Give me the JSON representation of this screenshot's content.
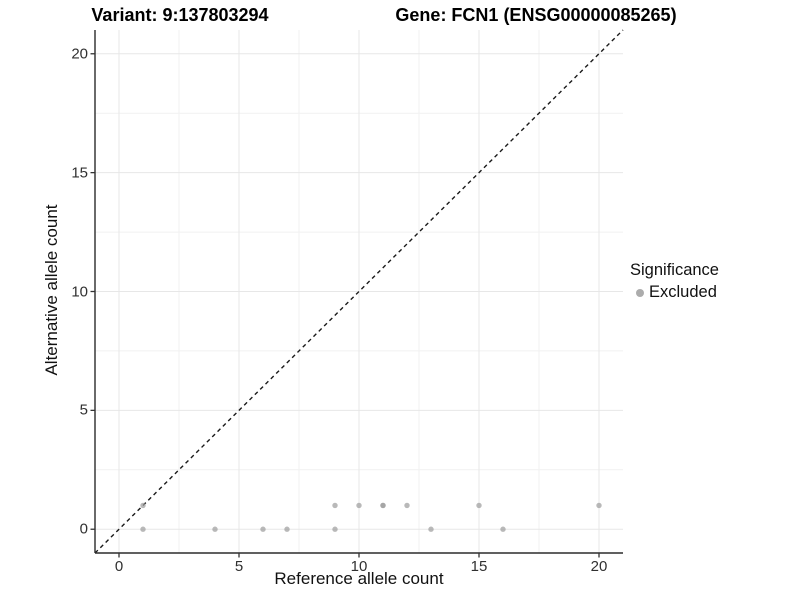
{
  "figure": {
    "title_left": "Variant: 9:137803294",
    "title_right": "Gene: FCN1 (ENSG00000085265)"
  },
  "chart_data": {
    "type": "scatter",
    "title": "Variant: 9:137803294   Gene: FCN1 (ENSG00000085265)",
    "xlabel": "Reference allele count",
    "ylabel": "Alternative allele count",
    "xlim": [
      0,
      20
    ],
    "ylim": [
      0,
      20
    ],
    "expanded_range": [
      -1,
      21
    ],
    "x_ticks": [
      0,
      5,
      10,
      15,
      20
    ],
    "y_ticks": [
      0,
      5,
      10,
      15,
      20
    ],
    "minor_ticks": [
      -2.5,
      2.5,
      7.5,
      12.5,
      17.5,
      22.5
    ],
    "grid": true,
    "identity_line": {
      "style": "dashed",
      "from": [
        -1,
        -1
      ],
      "to": [
        21,
        21
      ],
      "color": "#1a1a1a"
    },
    "legend": {
      "position": "right",
      "title": "Significance",
      "items": [
        {
          "label": "Excluded",
          "color": "#9e9e9e"
        }
      ]
    },
    "series": [
      {
        "name": "Excluded",
        "color": "#9e9e9e",
        "alpha": 0.72,
        "points": [
          [
            1,
            0
          ],
          [
            1,
            1
          ],
          [
            4,
            0
          ],
          [
            6,
            0
          ],
          [
            7,
            0
          ],
          [
            9,
            0
          ],
          [
            9,
            1
          ],
          [
            10,
            1
          ],
          [
            11,
            1
          ],
          [
            11,
            1
          ],
          [
            12,
            1
          ],
          [
            13,
            0
          ],
          [
            15,
            1
          ],
          [
            16,
            0
          ],
          [
            20,
            1
          ]
        ]
      }
    ],
    "colors": {
      "point": "#9e9e9e",
      "grid_major": "#e7e7e7",
      "grid_minor": "#f1f1f1",
      "axis_line": "#2b2b2b",
      "tick_mark": "#333333"
    }
  }
}
